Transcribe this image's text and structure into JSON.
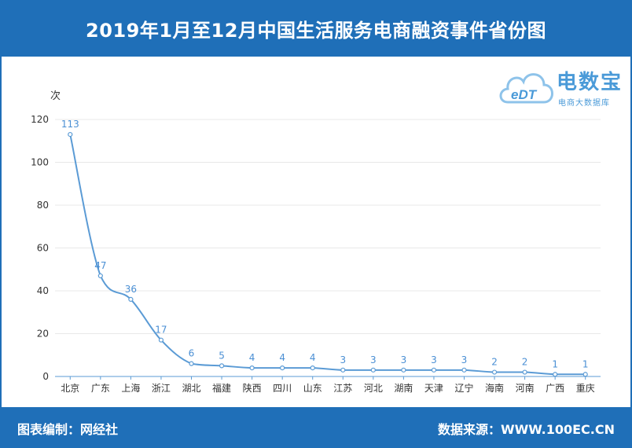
{
  "header": {
    "title": "2019年1月至12月中国生活服务电商融资事件省份图"
  },
  "footer": {
    "left": "图表编制：网经社",
    "right": "数据来源：WWW.100EC.CN"
  },
  "logo": {
    "text": "电数宝",
    "subtitle": "电商大数据库",
    "mark": "eDT"
  },
  "colors": {
    "brand": "#1f6fb8",
    "line": "#5b9bd5",
    "label": "#4a8fd4"
  },
  "chart_data": {
    "type": "line",
    "title": "",
    "ylabel": "次",
    "xlabel": "",
    "ylim": [
      0,
      120
    ],
    "yticks": [
      0,
      20,
      40,
      60,
      80,
      100,
      120
    ],
    "grid": true,
    "categories": [
      "北京",
      "广东",
      "上海",
      "浙江",
      "湖北",
      "福建",
      "陕西",
      "四川",
      "山东",
      "江苏",
      "河北",
      "湖南",
      "天津",
      "辽宁",
      "海南",
      "河南",
      "广西",
      "重庆"
    ],
    "series": [
      {
        "values": [
          113,
          47,
          36,
          17,
          6,
          5,
          4,
          4,
          4,
          3,
          3,
          3,
          3,
          3,
          2,
          2,
          1,
          1
        ]
      }
    ]
  }
}
